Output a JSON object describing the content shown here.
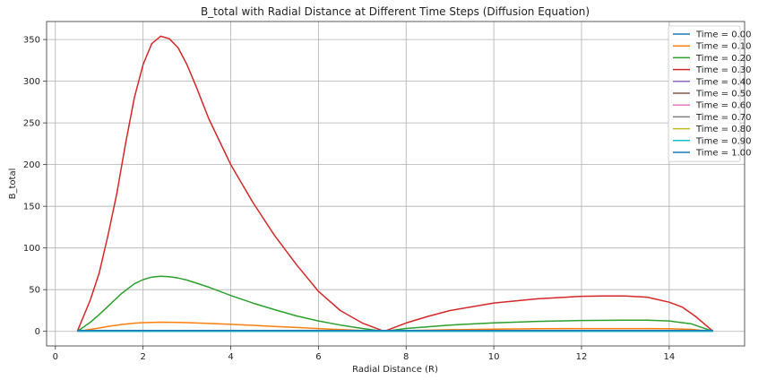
{
  "chart_data": {
    "type": "line",
    "title": "B_total with Radial Distance at Different Time Steps (Diffusion Equation)",
    "xlabel": "Radial Distance (R)",
    "ylabel": "B_total",
    "xlim": [
      -0.2,
      15.72
    ],
    "ylim": [
      -17.5,
      371.6
    ],
    "xticks": [
      0,
      2,
      4,
      6,
      8,
      10,
      12,
      14
    ],
    "yticks": [
      0,
      50,
      100,
      150,
      200,
      250,
      300,
      350
    ],
    "grid": true,
    "legend_position": "top-right",
    "series": [
      {
        "name": "Time = 0.00",
        "color": "#1f77b4",
        "x": [
          0.5,
          1,
          2,
          3,
          4,
          5,
          6,
          7,
          7.5,
          8,
          10,
          12,
          14,
          15
        ],
        "y": [
          1,
          1,
          1,
          1,
          1,
          1,
          1,
          1,
          1,
          1,
          1,
          1,
          1,
          1
        ]
      },
      {
        "name": "Time = 0.10",
        "color": "#ff7f0e",
        "x": [
          0.5,
          0.8,
          1.0,
          1.2,
          1.5,
          1.8,
          2.0,
          2.2,
          2.4,
          2.6,
          2.8,
          3.0,
          3.5,
          4.0,
          4.5,
          5.0,
          5.5,
          6.0,
          6.5,
          7.0,
          7.5,
          8.0,
          9.0,
          10.0,
          11.0,
          12.0,
          13.0,
          13.5,
          14.0,
          14.5,
          15.0
        ],
        "y": [
          0,
          2.4,
          4.0,
          5.8,
          8.2,
          9.8,
          10.5,
          10.8,
          11.0,
          10.9,
          10.7,
          10.4,
          9.5,
          8.4,
          7.2,
          5.9,
          4.6,
          3.4,
          2.2,
          1.1,
          0,
          0.9,
          2.0,
          2.7,
          3.1,
          3.3,
          3.4,
          3.4,
          3.2,
          2.4,
          0
        ]
      },
      {
        "name": "Time = 0.20",
        "color": "#2ca02c",
        "x": [
          0.5,
          0.8,
          1.0,
          1.2,
          1.5,
          1.8,
          2.0,
          2.2,
          2.4,
          2.6,
          2.8,
          3.0,
          3.5,
          4.0,
          4.5,
          5.0,
          5.5,
          6.0,
          6.5,
          7.0,
          7.5,
          8.0,
          9.0,
          10.0,
          11.0,
          12.0,
          13.0,
          13.5,
          14.0,
          14.5,
          15.0
        ],
        "y": [
          0,
          11,
          20,
          30,
          45,
          57,
          62,
          65,
          66,
          65.5,
          64,
          61.5,
          53,
          43,
          34,
          26,
          18.5,
          12.5,
          7.5,
          3.5,
          0,
          3.5,
          7.5,
          10.2,
          12,
          13,
          13.5,
          13.5,
          12.5,
          9,
          0
        ]
      },
      {
        "name": "Time = 0.30",
        "color": "#d62728",
        "x": [
          0.5,
          0.8,
          1.0,
          1.2,
          1.4,
          1.6,
          1.8,
          2.0,
          2.2,
          2.4,
          2.6,
          2.8,
          3.0,
          3.2,
          3.5,
          4.0,
          4.5,
          5.0,
          5.5,
          6.0,
          6.5,
          7.0,
          7.5,
          8.0,
          8.5,
          9.0,
          10.0,
          11.0,
          12.0,
          12.5,
          13.0,
          13.5,
          14.0,
          14.3,
          14.6,
          15.0
        ],
        "y": [
          0,
          38,
          70,
          115,
          165,
          225,
          280,
          320,
          345,
          354,
          351,
          340,
          320,
          295,
          255,
          200,
          155,
          115,
          80,
          48,
          25,
          10,
          0,
          10,
          18,
          25,
          34,
          39,
          42,
          42.5,
          42.5,
          41,
          35,
          29,
          18,
          0
        ]
      },
      {
        "name": "Time = 0.40",
        "color": "#9467bd",
        "x": [
          0.5,
          15
        ],
        "y": [
          0,
          0
        ]
      },
      {
        "name": "Time = 0.50",
        "color": "#8c564b",
        "x": [
          0.5,
          15
        ],
        "y": [
          0,
          0
        ]
      },
      {
        "name": "Time = 0.60",
        "color": "#e377c2",
        "x": [
          0.5,
          15
        ],
        "y": [
          0,
          0
        ]
      },
      {
        "name": "Time = 0.70",
        "color": "#7f7f7f",
        "x": [
          0.5,
          15
        ],
        "y": [
          0,
          0
        ]
      },
      {
        "name": "Time = 0.80",
        "color": "#bcbd22",
        "x": [
          0.5,
          15
        ],
        "y": [
          0,
          0
        ]
      },
      {
        "name": "Time = 0.90",
        "color": "#17becf",
        "x": [
          0.5,
          15
        ],
        "y": [
          0,
          0
        ]
      },
      {
        "name": "Time = 1.00",
        "color": "#1f77b4",
        "x": [
          0.5,
          15
        ],
        "y": [
          1,
          1
        ]
      }
    ]
  }
}
